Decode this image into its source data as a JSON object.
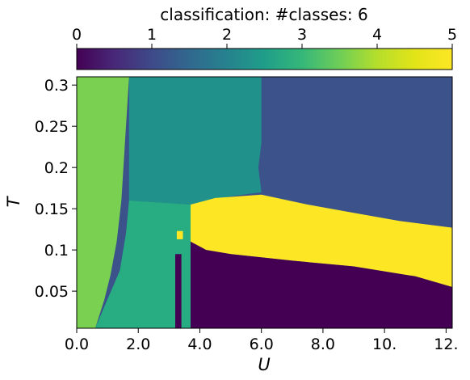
{
  "chart_data": {
    "type": "heatmap",
    "title": "classification: #classes: 6",
    "xlabel": "U",
    "ylabel": "T",
    "xlim": [
      0,
      12.2
    ],
    "ylim": [
      0.005,
      0.31
    ],
    "x_ticks": [
      0,
      2,
      4,
      6,
      8,
      10,
      12
    ],
    "x_tick_labels": [
      "0.0",
      "2.0",
      "4.0",
      "6.0",
      "8.0",
      "10.",
      "12."
    ],
    "y_ticks": [
      0.05,
      0.1,
      0.15,
      0.2,
      0.25,
      0.3
    ],
    "y_tick_labels": [
      "0.05",
      "0.1",
      "0.15",
      "0.2",
      "0.25",
      "0.3"
    ],
    "colorbar": {
      "label": "classification: #classes: 6",
      "range": [
        0,
        5
      ],
      "ticks": [
        0,
        1,
        2,
        3,
        4,
        5
      ],
      "tick_labels": [
        "0",
        "1",
        "2",
        "3",
        "4",
        "5"
      ],
      "colormap": "viridis"
    },
    "class_colors": [
      "#440154",
      "#3b528b",
      "#21918c",
      "#27ad81",
      "#7ad151",
      "#fde725"
    ],
    "regions": [
      {
        "class": 1,
        "polygon": [
          [
            0,
            0.31
          ],
          [
            12.2,
            0.31
          ],
          [
            12.2,
            0.005
          ],
          [
            0,
            0.005
          ]
        ]
      },
      {
        "class": 2,
        "polygon": [
          [
            1.7,
            0.31
          ],
          [
            6,
            0.31
          ],
          [
            6,
            0.23
          ],
          [
            5.9,
            0.2
          ],
          [
            6,
            0.17
          ],
          [
            5,
            0.165
          ],
          [
            3.7,
            0.155
          ],
          [
            2.5,
            0.14
          ],
          [
            2.1,
            0.12
          ],
          [
            1.5,
            0.07
          ],
          [
            1,
            0.04
          ],
          [
            0.6,
            0.005
          ],
          [
            3.2,
            0.005
          ],
          [
            3.7,
            0.005
          ],
          [
            3.7,
            0.155
          ],
          [
            1.7,
            0.16
          ]
        ]
      },
      {
        "class": 3,
        "polygon": [
          [
            1.7,
            0.16
          ],
          [
            3.7,
            0.155
          ],
          [
            3.7,
            0.005
          ],
          [
            0.6,
            0.005
          ],
          [
            1,
            0.04
          ],
          [
            1.4,
            0.075
          ],
          [
            1.6,
            0.12
          ]
        ]
      },
      {
        "class": 4,
        "polygon": [
          [
            0,
            0.31
          ],
          [
            1.7,
            0.31
          ],
          [
            1.55,
            0.22
          ],
          [
            1.45,
            0.16
          ],
          [
            1.3,
            0.11
          ],
          [
            1.1,
            0.07
          ],
          [
            0.9,
            0.04
          ],
          [
            0.6,
            0.005
          ],
          [
            0,
            0.005
          ]
        ]
      },
      {
        "class": 5,
        "polygon": [
          [
            3.7,
            0.155
          ],
          [
            4.5,
            0.163
          ],
          [
            6,
            0.167
          ],
          [
            7.5,
            0.155
          ],
          [
            9,
            0.145
          ],
          [
            10.5,
            0.135
          ],
          [
            12.2,
            0.127
          ],
          [
            12.2,
            0.055
          ],
          [
            11,
            0.068
          ],
          [
            9,
            0.08
          ],
          [
            7,
            0.087
          ],
          [
            5,
            0.095
          ],
          [
            4.2,
            0.1
          ],
          [
            3.7,
            0.11
          ]
        ]
      },
      {
        "class": 0,
        "polygon": [
          [
            3.7,
            0.11
          ],
          [
            4.2,
            0.1
          ],
          [
            5,
            0.095
          ],
          [
            7,
            0.087
          ],
          [
            9,
            0.08
          ],
          [
            11,
            0.068
          ],
          [
            12.2,
            0.055
          ],
          [
            12.2,
            0.005
          ],
          [
            3.7,
            0.005
          ]
        ]
      },
      {
        "class": 0,
        "polygon": [
          [
            3.2,
            0.095
          ],
          [
            3.4,
            0.095
          ],
          [
            3.4,
            0.005
          ],
          [
            3.2,
            0.005
          ]
        ]
      },
      {
        "class": 5,
        "polygon": [
          [
            3.25,
            0.123
          ],
          [
            3.45,
            0.123
          ],
          [
            3.45,
            0.113
          ],
          [
            3.25,
            0.113
          ]
        ]
      }
    ]
  }
}
